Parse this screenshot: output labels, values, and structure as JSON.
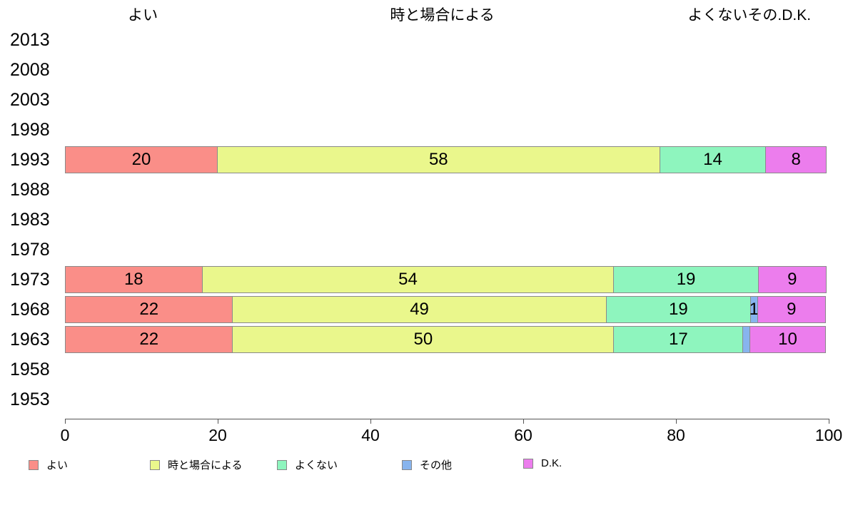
{
  "chart_data": {
    "type": "bar",
    "orientation": "horizontal",
    "stacked": true,
    "unit": "percent",
    "xlim": [
      0,
      100
    ],
    "xticks": [
      0,
      20,
      40,
      60,
      80,
      100
    ],
    "grid": false,
    "legend_position": "bottom",
    "column_headers": [
      {
        "text": "よい",
        "x_pct": 10.2
      },
      {
        "text": "時と場合による",
        "x_pct": 49.4
      },
      {
        "text": "よくないその.D.K.",
        "x_pct": 89.6
      }
    ],
    "series": [
      {
        "name": "よい",
        "color": "#fa8e88"
      },
      {
        "name": "時と場合による",
        "color": "#eaf78c"
      },
      {
        "name": "よくない",
        "color": "#8ef5be"
      },
      {
        "name": "その他",
        "color": "#87b4ee"
      },
      {
        "name": "D.K.",
        "color": "#ec7ded"
      }
    ],
    "rows": [
      {
        "year": "2013",
        "values": [],
        "labels": []
      },
      {
        "year": "2008",
        "values": [],
        "labels": []
      },
      {
        "year": "2003",
        "values": [],
        "labels": []
      },
      {
        "year": "1998",
        "values": [],
        "labels": []
      },
      {
        "year": "1993",
        "values": [
          20,
          58,
          14,
          0,
          8
        ],
        "labels": [
          "20",
          "58",
          "14",
          "",
          "8"
        ]
      },
      {
        "year": "1988",
        "values": [],
        "labels": []
      },
      {
        "year": "1983",
        "values": [],
        "labels": []
      },
      {
        "year": "1978",
        "values": [],
        "labels": []
      },
      {
        "year": "1973",
        "values": [
          18,
          54,
          19,
          0,
          9
        ],
        "labels": [
          "18",
          "54",
          "19",
          "",
          "9"
        ]
      },
      {
        "year": "1968",
        "values": [
          22,
          49,
          19,
          1,
          9
        ],
        "labels": [
          "22",
          "49",
          "19",
          "1",
          "9"
        ]
      },
      {
        "year": "1963",
        "values": [
          22,
          50,
          17,
          1,
          10
        ],
        "labels": [
          "22",
          "50",
          "17",
          "",
          "10"
        ]
      },
      {
        "year": "1958",
        "values": [],
        "labels": []
      },
      {
        "year": "1953",
        "values": [],
        "labels": []
      }
    ]
  }
}
